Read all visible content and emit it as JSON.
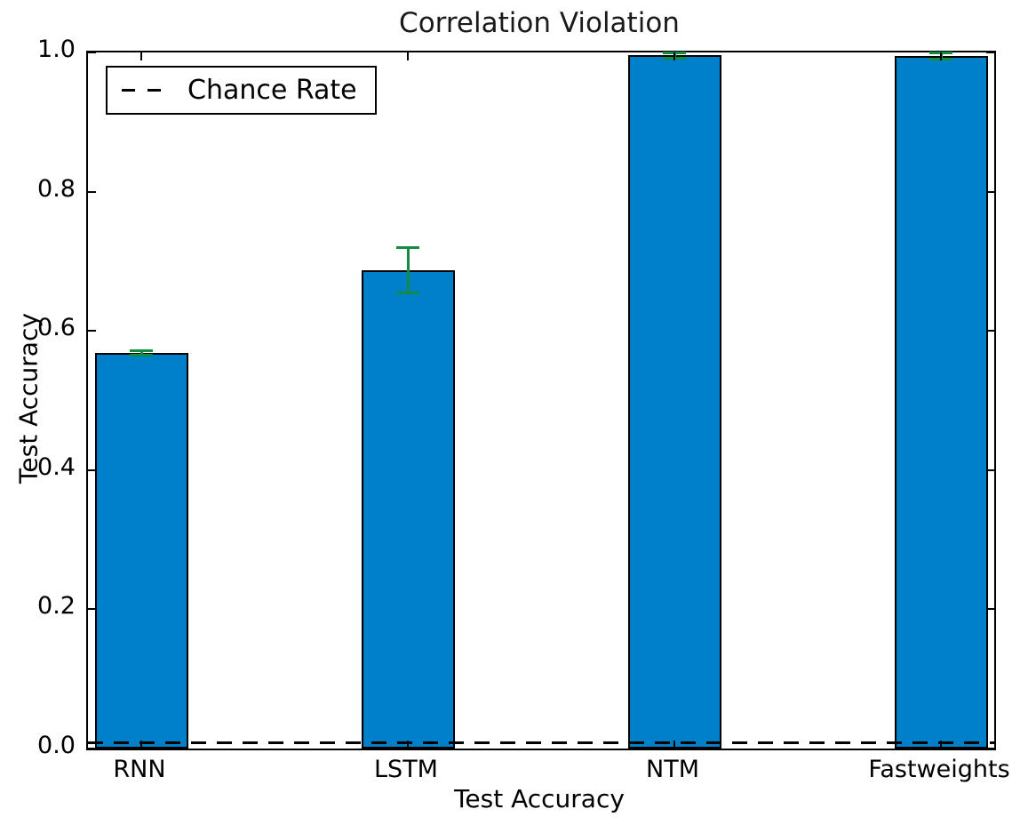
{
  "title": "Correlation Violation",
  "axes": {
    "x_label": "Test Accuracy",
    "y_label": "Test Accuracy"
  },
  "legend": {
    "items": [
      {
        "label": "Chance Rate",
        "marker": "dashed-line",
        "marker_color": "#000000"
      }
    ],
    "position": "upper left"
  },
  "chart_data": {
    "type": "bar",
    "title": "Correlation Violation",
    "xlabel": "Test Accuracy",
    "ylabel": "Test Accuracy",
    "categories": [
      "RNN",
      "LSTM",
      "NTM",
      "Fastweights"
    ],
    "values": [
      0.568,
      0.687,
      0.996,
      0.995
    ],
    "errors": [
      0.003,
      0.033,
      0.004,
      0.005
    ],
    "chance_rate": 0.008,
    "bar_positions": [
      0,
      1,
      2,
      3
    ],
    "bar_width": 0.35,
    "xlim": [
      -0.2,
      3.2
    ],
    "ylim": [
      0.0,
      1.0
    ],
    "y_ticks": [
      "0.0",
      "0.2",
      "0.4",
      "0.6",
      "0.8",
      "1.0"
    ],
    "y_tick_values": [
      0.0,
      0.2,
      0.4,
      0.6,
      0.8,
      1.0
    ],
    "grid": false,
    "legend_position": "upper left",
    "colors": {
      "bar_fill": "#0080c8",
      "bar_edge": "#000000",
      "error_bar": "#128c42",
      "chance_line": "#000000",
      "axis": "#000000",
      "background": "#ffffff"
    }
  }
}
